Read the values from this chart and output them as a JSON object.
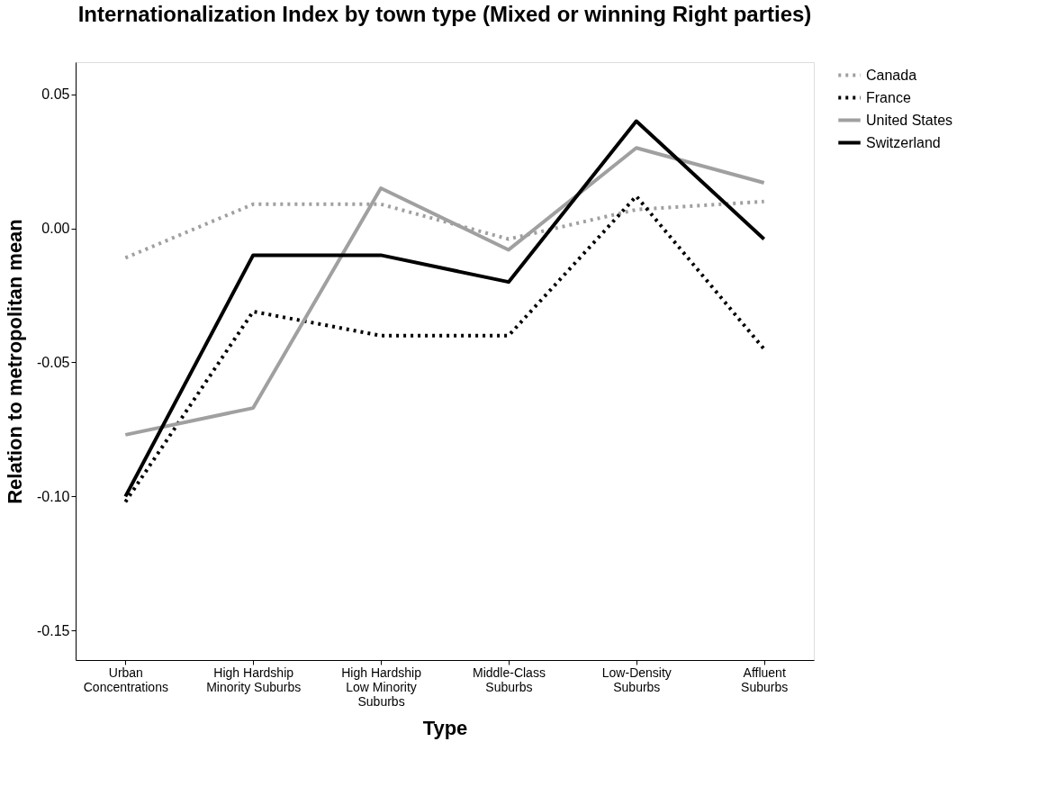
{
  "chart_data": {
    "type": "line",
    "title": "Internationalization Index by town type (Mixed or winning Right parties)",
    "xlabel": "Type",
    "ylabel": "Relation to metropolitan mean",
    "categories": [
      "Urban\nConcentrations",
      "High Hardship\nMinority Suburbs",
      "High Hardship\nLow Minority\nSuburbs",
      "Middle-Class\nSuburbs",
      "Low-Density\nSuburbs",
      "Affluent\nSuburbs"
    ],
    "series": [
      {
        "name": "Canada",
        "color": "#a0a0a0",
        "line_style": "dotted",
        "values": [
          -0.011,
          0.009,
          0.009,
          -0.004,
          0.007,
          0.01
        ]
      },
      {
        "name": "France",
        "color": "#000000",
        "line_style": "dotted",
        "values": [
          -0.102,
          -0.031,
          -0.04,
          -0.04,
          0.012,
          -0.045
        ]
      },
      {
        "name": "United States",
        "color": "#a0a0a0",
        "line_style": "solid",
        "values": [
          -0.077,
          -0.067,
          0.015,
          -0.008,
          0.03,
          0.017
        ]
      },
      {
        "name": "Switzerland",
        "color": "#000000",
        "line_style": "solid",
        "values": [
          -0.1,
          -0.01,
          -0.01,
          -0.02,
          0.04,
          -0.004
        ]
      }
    ],
    "ylim": [
      -0.161,
      0.062
    ],
    "yticks": [
      {
        "value": -0.15,
        "label": "-0.15"
      },
      {
        "value": -0.1,
        "label": "-0.10"
      },
      {
        "value": -0.05,
        "label": "-0.05"
      },
      {
        "value": 0,
        "label": "0.00"
      },
      {
        "value": 0.05,
        "label": "0.05"
      }
    ],
    "grid": false,
    "legend": "top right",
    "marker": "none"
  }
}
